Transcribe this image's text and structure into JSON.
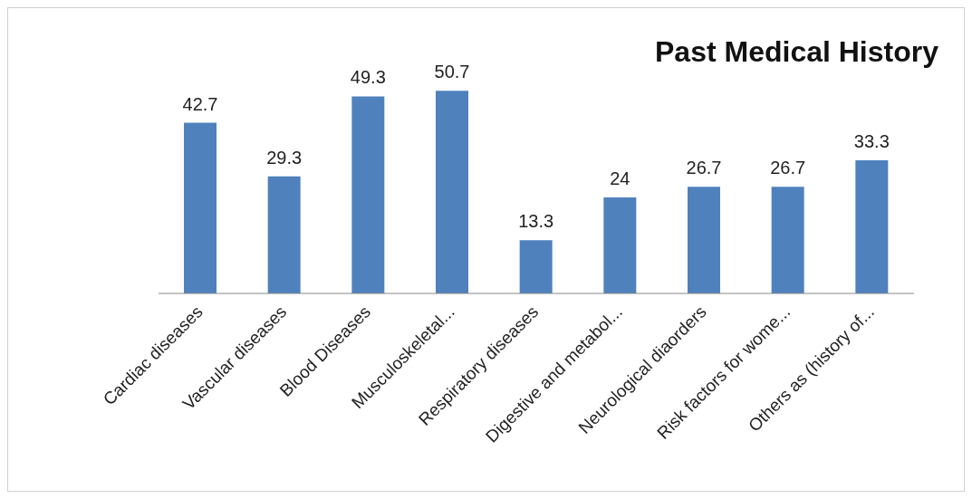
{
  "chart_data": {
    "type": "bar",
    "title": "Past Medical History",
    "categories": [
      "Cardiac diseases",
      "Vascular diseases",
      "Blood Diseases",
      "Musculoskeletal...",
      "Respiratory diseases",
      "Digestive and metabol...",
      "Neurological diaorders",
      "Risk factors for wome...",
      "Others as (history of..."
    ],
    "values": [
      42.7,
      29.3,
      49.3,
      50.7,
      13.3,
      24,
      26.7,
      26.7,
      33.3
    ],
    "color": "#4f81bd",
    "data_labels": true
  }
}
